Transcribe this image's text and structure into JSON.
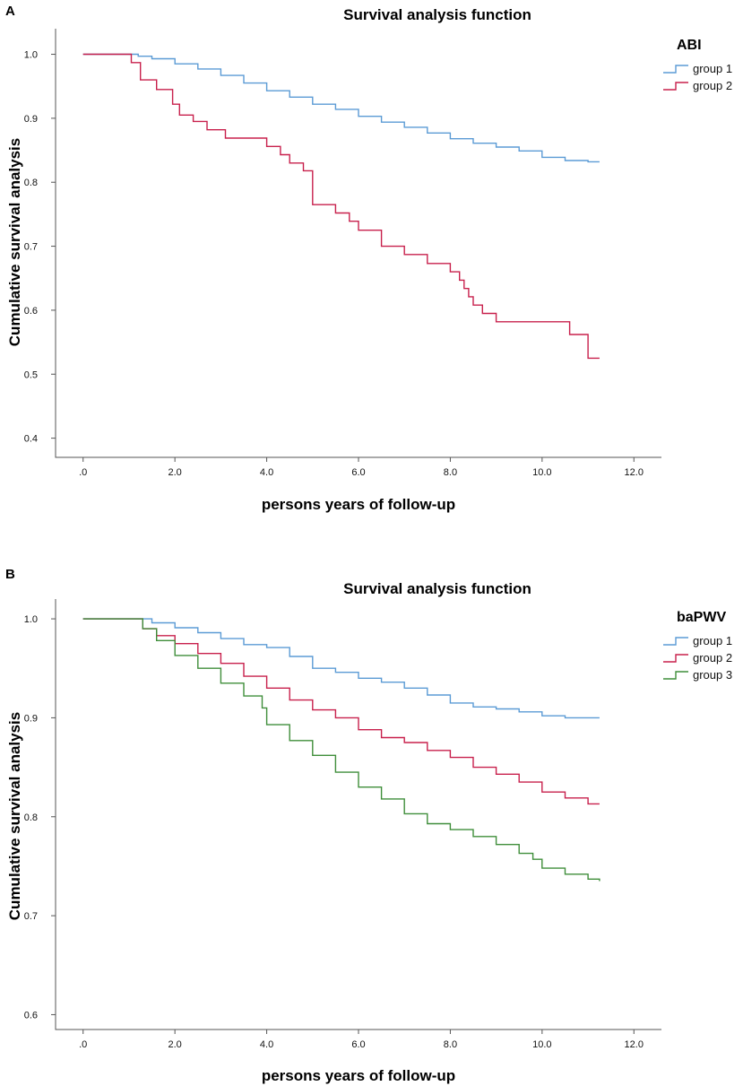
{
  "chart_data": [
    {
      "panel_label": "A",
      "type": "line",
      "step": true,
      "title": "Survival analysis function",
      "xlabel": "persons years of follow-up",
      "ylabel": "Cumulative survival analysis",
      "xlim": [
        -0.6,
        12.6
      ],
      "ylim": [
        0.37,
        1.04
      ],
      "xticks": [
        0,
        2,
        4,
        6,
        8,
        10,
        12
      ],
      "xtick_labels": [
        ".0",
        "2.0",
        "4.0",
        "6.0",
        "8.0",
        "10.0",
        "12.0"
      ],
      "yticks": [
        0.4,
        0.5,
        0.6,
        0.7,
        0.8,
        0.9,
        1.0
      ],
      "ytick_labels": [
        "0.4",
        "0.5",
        "0.6",
        "0.7",
        "0.8",
        "0.9",
        "1.0"
      ],
      "legend_title": "ABI",
      "legend_position": "top-right",
      "series": [
        {
          "name": "group 1",
          "color": "#5b9bd5",
          "x": [
            0,
            1.0,
            1.2,
            1.5,
            2.0,
            2.5,
            3.0,
            3.5,
            4.0,
            4.5,
            5.0,
            5.5,
            6.0,
            6.5,
            7.0,
            7.5,
            8.0,
            8.5,
            9.0,
            9.5,
            10.0,
            10.5,
            11.0,
            11.25
          ],
          "y": [
            1.0,
            1.0,
            0.997,
            0.993,
            0.985,
            0.977,
            0.967,
            0.955,
            0.943,
            0.933,
            0.922,
            0.914,
            0.903,
            0.894,
            0.886,
            0.877,
            0.868,
            0.861,
            0.855,
            0.849,
            0.839,
            0.834,
            0.832,
            0.832
          ]
        },
        {
          "name": "group 2",
          "color": "#c8204c",
          "x": [
            0,
            1.05,
            1.25,
            1.6,
            1.95,
            2.1,
            2.4,
            2.7,
            3.1,
            3.5,
            4.0,
            4.3,
            4.5,
            4.8,
            5.0,
            5.5,
            5.8,
            6.0,
            6.5,
            7.0,
            7.5,
            8.0,
            8.2,
            8.3,
            8.4,
            8.5,
            8.7,
            8.9,
            9.0,
            10.2,
            10.6,
            10.9,
            11.0,
            11.25
          ],
          "y": [
            1.0,
            0.987,
            0.96,
            0.945,
            0.922,
            0.905,
            0.895,
            0.882,
            0.869,
            0.869,
            0.856,
            0.843,
            0.83,
            0.818,
            0.765,
            0.752,
            0.739,
            0.725,
            0.7,
            0.687,
            0.673,
            0.66,
            0.647,
            0.634,
            0.621,
            0.608,
            0.595,
            0.595,
            0.582,
            0.582,
            0.562,
            0.562,
            0.525,
            0.525
          ]
        }
      ]
    },
    {
      "panel_label": "B",
      "type": "line",
      "step": true,
      "title": "Survival analysis function",
      "xlabel": "persons years of follow-up",
      "ylabel": "Cumulative survival analysis",
      "xlim": [
        -0.6,
        12.6
      ],
      "ylim": [
        0.585,
        1.02
      ],
      "xticks": [
        0,
        2,
        4,
        6,
        8,
        10,
        12
      ],
      "xtick_labels": [
        ".0",
        "2.0",
        "4.0",
        "6.0",
        "8.0",
        "10.0",
        "12.0"
      ],
      "yticks": [
        0.6,
        0.7,
        0.8,
        0.9,
        1.0
      ],
      "ytick_labels": [
        "0.6",
        "0.7",
        "0.8",
        "0.9",
        "1.0"
      ],
      "legend_title": "baPWV",
      "legend_position": "top-right",
      "series": [
        {
          "name": "group 1",
          "color": "#5b9bd5",
          "x": [
            0,
            1.05,
            1.5,
            2.0,
            2.5,
            3.0,
            3.5,
            4.0,
            4.5,
            5.0,
            5.5,
            6.0,
            6.5,
            7.0,
            7.5,
            8.0,
            8.5,
            9.0,
            9.5,
            10.0,
            10.5,
            11.25
          ],
          "y": [
            1.0,
            1.0,
            0.996,
            0.991,
            0.986,
            0.98,
            0.974,
            0.971,
            0.962,
            0.95,
            0.946,
            0.94,
            0.936,
            0.93,
            0.923,
            0.915,
            0.911,
            0.909,
            0.906,
            0.902,
            0.9,
            0.9
          ]
        },
        {
          "name": "group 2",
          "color": "#c8204c",
          "x": [
            0,
            1.05,
            1.3,
            1.6,
            2.0,
            2.5,
            3.0,
            3.5,
            4.0,
            4.5,
            5.0,
            5.5,
            6.0,
            6.5,
            7.0,
            7.5,
            8.0,
            8.5,
            9.0,
            9.5,
            10.0,
            10.5,
            11.0,
            11.25
          ],
          "y": [
            1.0,
            1.0,
            0.99,
            0.983,
            0.975,
            0.965,
            0.955,
            0.942,
            0.93,
            0.918,
            0.908,
            0.9,
            0.888,
            0.88,
            0.875,
            0.867,
            0.86,
            0.85,
            0.843,
            0.835,
            0.825,
            0.819,
            0.813,
            0.813
          ]
        },
        {
          "name": "group 3",
          "color": "#3f8e3a",
          "x": [
            0,
            1.05,
            1.3,
            1.6,
            2.0,
            2.5,
            3.0,
            3.5,
            3.9,
            4.0,
            4.5,
            5.0,
            5.5,
            6.0,
            6.5,
            7.0,
            7.5,
            8.0,
            8.5,
            9.0,
            9.5,
            9.8,
            10.0,
            10.5,
            11.0,
            11.25
          ],
          "y": [
            1.0,
            1.0,
            0.99,
            0.978,
            0.963,
            0.95,
            0.935,
            0.922,
            0.91,
            0.893,
            0.877,
            0.862,
            0.845,
            0.83,
            0.818,
            0.803,
            0.793,
            0.787,
            0.78,
            0.772,
            0.763,
            0.757,
            0.748,
            0.742,
            0.737,
            0.735
          ]
        }
      ]
    }
  ]
}
